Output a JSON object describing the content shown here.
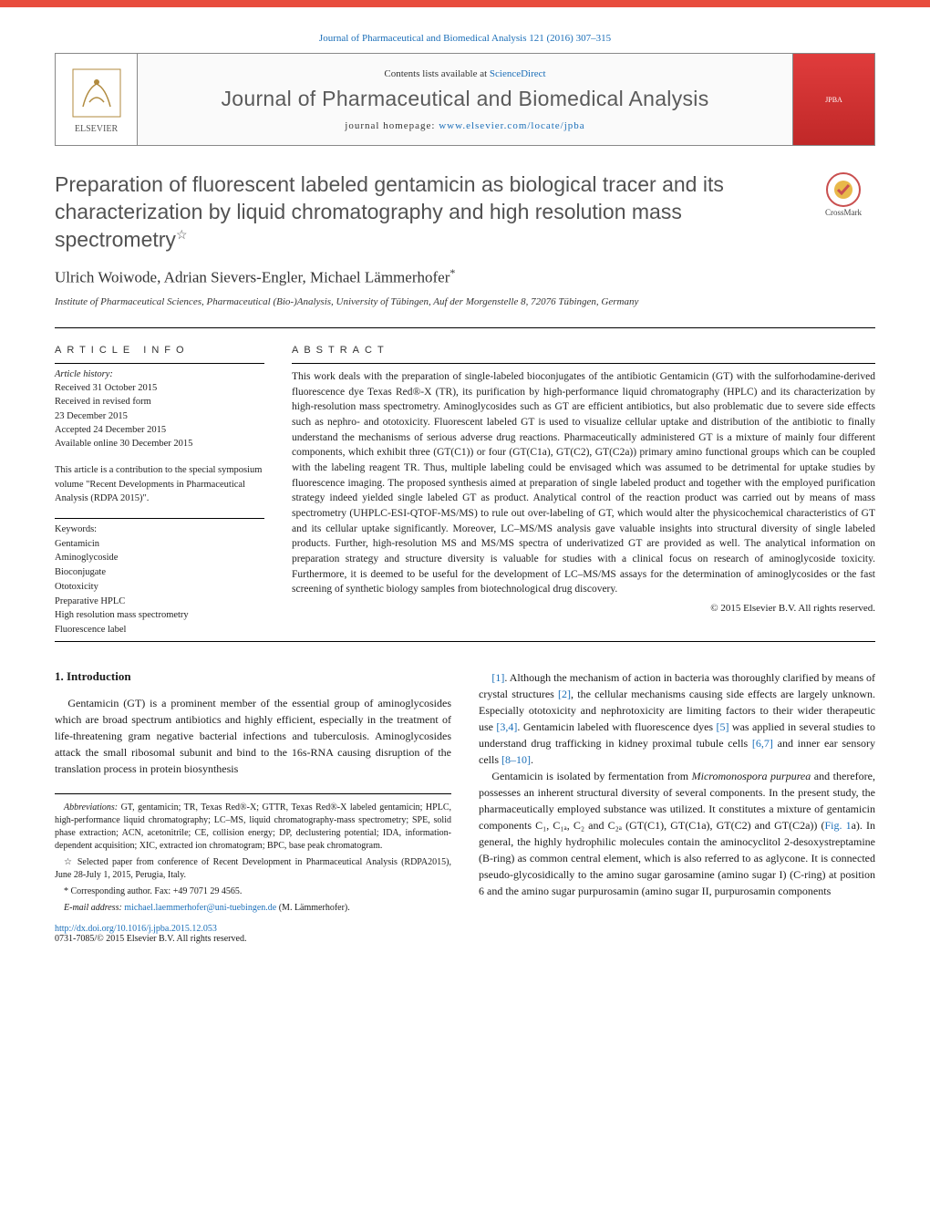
{
  "colors": {
    "accent_bar": "#e84c3d",
    "link": "#1a6eb8",
    "heading_gray": "#525252",
    "text": "#1a1a1a",
    "cover_bg_top": "#e03c3c",
    "cover_bg_bottom": "#c02828",
    "border": "#888888"
  },
  "typography": {
    "body_family": "Georgia, 'Times New Roman', serif",
    "heading_family": "Arial, sans-serif",
    "article_title_fontsize": 23,
    "journal_title_fontsize": 23,
    "authors_fontsize": 17,
    "abstract_fontsize": 11.5,
    "body_fontsize": 12,
    "footnote_fontsize": 10
  },
  "header": {
    "citation": "Journal of Pharmaceutical and Biomedical Analysis 121 (2016) 307–315",
    "contents_line_prefix": "Contents lists available at ",
    "contents_line_link": "ScienceDirect",
    "journal_title": "Journal of Pharmaceutical and Biomedical Analysis",
    "homepage_prefix": "journal homepage: ",
    "homepage_link": "www.elsevier.com/locate/jpba",
    "elsevier_label": "ELSEVIER",
    "crossmark_label": "CrossMark"
  },
  "article": {
    "title": "Preparation of fluorescent labeled gentamicin as biological tracer and its characterization by liquid chromatography and high resolution mass spectrometry",
    "title_star": "☆",
    "authors": "Ulrich Woiwode, Adrian Sievers-Engler, Michael Lämmerhofer",
    "corr_mark": "*",
    "affiliation": "Institute of Pharmaceutical Sciences, Pharmaceutical (Bio-)Analysis, University of Tübingen, Auf der Morgenstelle 8, 72076 Tübingen, Germany"
  },
  "article_info": {
    "heading": "ARTICLE INFO",
    "history_label": "Article history:",
    "received": "Received 31 October 2015",
    "revised1": "Received in revised form",
    "revised2": "23 December 2015",
    "accepted": "Accepted 24 December 2015",
    "online": "Available online 30 December 2015",
    "note": "This article is a contribution to the special symposium volume \"Recent Developments in Pharmaceutical Analysis (RDPA 2015)\".",
    "keywords_label": "Keywords:",
    "keywords": [
      "Gentamicin",
      "Aminoglycoside",
      "Bioconjugate",
      "Ototoxicity",
      "Preparative HPLC",
      "High resolution mass spectrometry",
      "Fluorescence label"
    ]
  },
  "abstract": {
    "heading": "ABSTRACT",
    "text": "This work deals with the preparation of single-labeled bioconjugates of the antibiotic Gentamicin (GT) with the sulforhodamine-derived fluorescence dye Texas Red®-X (TR), its purification by high-performance liquid chromatography (HPLC) and its characterization by high-resolution mass spectrometry. Aminoglycosides such as GT are efficient antibiotics, but also problematic due to severe side effects such as nephro- and ototoxicity. Fluorescent labeled GT is used to visualize cellular uptake and distribution of the antibiotic to finally understand the mechanisms of serious adverse drug reactions. Pharmaceutically administered GT is a mixture of mainly four different components, which exhibit three (GT(C1)) or four (GT(C1a), GT(C2), GT(C2a)) primary amino functional groups which can be coupled with the labeling reagent TR. Thus, multiple labeling could be envisaged which was assumed to be detrimental for uptake studies by fluorescence imaging. The proposed synthesis aimed at preparation of single labeled product and together with the employed purification strategy indeed yielded single labeled GT as product. Analytical control of the reaction product was carried out by means of mass spectrometry (UHPLC-ESI-QTOF-MS/MS) to rule out over-labeling of GT, which would alter the physicochemical characteristics of GT and its cellular uptake significantly. Moreover, LC–MS/MS analysis gave valuable insights into structural diversity of single labeled products. Further, high-resolution MS and MS/MS spectra of underivatized GT are provided as well. The analytical information on preparation strategy and structure diversity is valuable for studies with a clinical focus on research of aminoglycoside toxicity. Furthermore, it is deemed to be useful for the development of LC–MS/MS assays for the determination of aminoglycosides or the fast screening of synthetic biology samples from biotechnological drug discovery.",
    "copyright": "© 2015 Elsevier B.V. All rights reserved."
  },
  "intro": {
    "heading": "1. Introduction",
    "col1_p1": "Gentamicin (GT) is a prominent member of the essential group of aminoglycosides which are broad spectrum antibiotics and highly efficient, especially in the treatment of life-threatening gram negative bacterial infections and tuberculosis. Aminoglycosides attack the small ribosomal subunit and bind to the 16s-RNA causing disruption of the translation process in protein biosynthesis",
    "col2_p1_a": "[1]. Although the mechanism of action in bacteria was thoroughly clarified by means of crystal structures [2], the cellular mechanisms causing side effects are largely unknown. Especially ototoxicity and nephrotoxicity are limiting factors to their wider therapeutic use [3,4]. Gentamicin labeled with fluorescence dyes [5] was applied in several studies to understand drug trafficking in kidney proximal tubule cells [6,7] and inner ear sensory cells [8–10].",
    "col2_p2": "Gentamicin is isolated by fermentation from Micromonospora purpurea and therefore, possesses an inherent structural diversity of several components. In the present study, the pharmaceutically employed substance was utilized. It constitutes a mixture of gentamicin components C₁, C₁ₐ, C₂ and C₂ₐ (GT(C1), GT(C1a), GT(C2) and GT(C2a)) (Fig. 1a). In general, the highly hydrophilic molecules contain the aminocyclitol 2-desoxystreptamine (B-ring) as common central element, which is also referred to as aglycone. It is connected pseudo-glycosidically to the amino sugar garosamine (amino sugar I) (C-ring) at position 6 and the amino sugar purpurosamin (amino sugar II, purpurosamin components"
  },
  "footnotes": {
    "abbrev_label": "Abbreviations:",
    "abbrev": "GT, gentamicin; TR, Texas Red®-X; GTTR, Texas Red®-X labeled gentamicin; HPLC, high-performance liquid chromatography; LC–MS, liquid chromatography-mass spectrometry; SPE, solid phase extraction; ACN, acetonitrile; CE, collision energy; DP, declustering potential; IDA, information-dependent acquisition; XIC, extracted ion chromatogram; BPC, base peak chromatogram.",
    "star_note": "☆ Selected paper from conference of Recent Development in Pharmaceutical Analysis (RDPA2015), June 28-July 1, 2015, Perugia, Italy.",
    "corr_label": "* Corresponding author. Fax: +49 7071 29 4565.",
    "email_label": "E-mail address: ",
    "email": "michael.laemmerhofer@uni-tuebingen.de",
    "email_paren": " (M. Lämmerhofer)."
  },
  "doi": {
    "url": "http://dx.doi.org/10.1016/j.jpba.2015.12.053",
    "issn_line": "0731-7085/© 2015 Elsevier B.V. All rights reserved."
  }
}
